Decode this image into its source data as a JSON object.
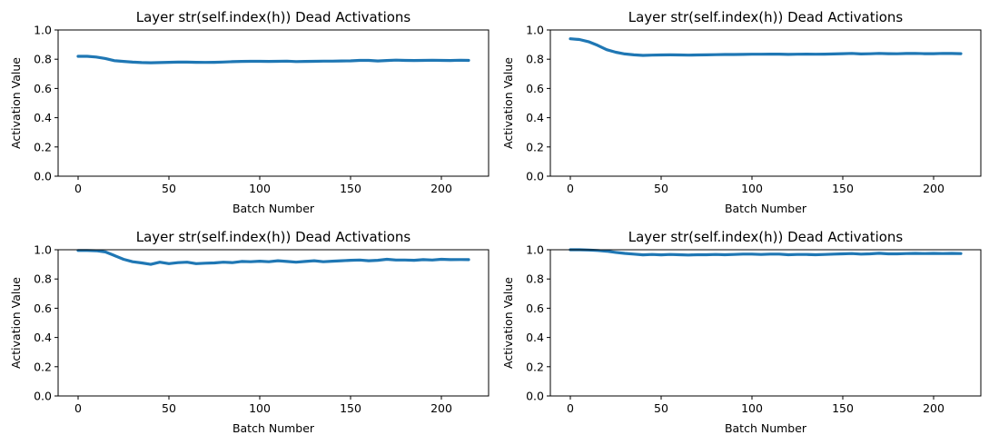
{
  "figure": {
    "background": "#ffffff",
    "line_color": "#1f77b4"
  },
  "chart_data": [
    {
      "type": "line",
      "title": "Layer str(self.index(h)) Dead Activations",
      "xlabel": "Batch Number",
      "ylabel": "Activation Value",
      "xlim": [
        -11,
        226
      ],
      "ylim": [
        0,
        1
      ],
      "xticks": [
        0,
        50,
        100,
        150,
        200
      ],
      "yticks": [
        0.0,
        0.2,
        0.4,
        0.6,
        0.8,
        1.0
      ],
      "xtick_labels": [
        "0",
        "50",
        "100",
        "150",
        "200"
      ],
      "ytick_labels": [
        "0.0",
        "0.2",
        "0.4",
        "0.6",
        "0.8",
        "1.0"
      ],
      "series": [
        {
          "x": [
            0,
            5,
            10,
            15,
            20,
            25,
            30,
            35,
            40,
            45,
            50,
            55,
            60,
            65,
            70,
            75,
            80,
            85,
            90,
            95,
            100,
            105,
            110,
            115,
            120,
            125,
            130,
            135,
            140,
            145,
            150,
            155,
            160,
            165,
            170,
            175,
            180,
            185,
            190,
            195,
            200,
            205,
            210,
            215
          ],
          "values": [
            0.82,
            0.82,
            0.815,
            0.805,
            0.79,
            0.785,
            0.78,
            0.777,
            0.776,
            0.777,
            0.779,
            0.78,
            0.78,
            0.779,
            0.778,
            0.779,
            0.781,
            0.783,
            0.785,
            0.786,
            0.786,
            0.785,
            0.786,
            0.787,
            0.784,
            0.785,
            0.786,
            0.787,
            0.787,
            0.788,
            0.789,
            0.792,
            0.792,
            0.788,
            0.791,
            0.794,
            0.792,
            0.791,
            0.792,
            0.793,
            0.792,
            0.791,
            0.793,
            0.792
          ]
        }
      ]
    },
    {
      "type": "line",
      "title": "Layer str(self.index(h)) Dead Activations",
      "xlabel": "Batch Number",
      "ylabel": "Activation Value",
      "xlim": [
        -11,
        226
      ],
      "ylim": [
        0,
        1
      ],
      "xticks": [
        0,
        50,
        100,
        150,
        200
      ],
      "yticks": [
        0.0,
        0.2,
        0.4,
        0.6,
        0.8,
        1.0
      ],
      "xtick_labels": [
        "0",
        "50",
        "100",
        "150",
        "200"
      ],
      "ytick_labels": [
        "0.0",
        "0.2",
        "0.4",
        "0.6",
        "0.8",
        "1.0"
      ],
      "series": [
        {
          "x": [
            0,
            5,
            10,
            15,
            20,
            25,
            30,
            35,
            40,
            45,
            50,
            55,
            60,
            65,
            70,
            75,
            80,
            85,
            90,
            95,
            100,
            105,
            110,
            115,
            120,
            125,
            130,
            135,
            140,
            145,
            150,
            155,
            160,
            165,
            170,
            175,
            180,
            185,
            190,
            195,
            200,
            205,
            210,
            215
          ],
          "values": [
            0.94,
            0.935,
            0.92,
            0.895,
            0.865,
            0.848,
            0.836,
            0.83,
            0.826,
            0.828,
            0.829,
            0.83,
            0.829,
            0.828,
            0.829,
            0.83,
            0.831,
            0.832,
            0.832,
            0.833,
            0.834,
            0.834,
            0.835,
            0.835,
            0.833,
            0.834,
            0.835,
            0.834,
            0.835,
            0.836,
            0.838,
            0.84,
            0.836,
            0.837,
            0.84,
            0.838,
            0.837,
            0.839,
            0.84,
            0.838,
            0.838,
            0.84,
            0.839,
            0.838
          ]
        }
      ]
    },
    {
      "type": "line",
      "title": "Layer str(self.index(h)) Dead Activations",
      "xlabel": "Batch Number",
      "ylabel": "Activation Value",
      "xlim": [
        -11,
        226
      ],
      "ylim": [
        0,
        1
      ],
      "xticks": [
        0,
        50,
        100,
        150,
        200
      ],
      "yticks": [
        0.0,
        0.2,
        0.4,
        0.6,
        0.8,
        1.0
      ],
      "xtick_labels": [
        "0",
        "50",
        "100",
        "150",
        "200"
      ],
      "ytick_labels": [
        "0.0",
        "0.2",
        "0.4",
        "0.6",
        "0.8",
        "1.0"
      ],
      "series": [
        {
          "x": [
            0,
            5,
            10,
            15,
            20,
            25,
            30,
            35,
            40,
            45,
            50,
            55,
            60,
            65,
            70,
            75,
            80,
            85,
            90,
            95,
            100,
            105,
            110,
            115,
            120,
            125,
            130,
            135,
            140,
            145,
            150,
            155,
            160,
            165,
            170,
            175,
            180,
            185,
            190,
            195,
            200,
            205,
            210,
            215
          ],
          "values": [
            0.995,
            0.995,
            0.993,
            0.985,
            0.96,
            0.935,
            0.918,
            0.91,
            0.9,
            0.915,
            0.905,
            0.912,
            0.915,
            0.905,
            0.908,
            0.91,
            0.915,
            0.912,
            0.92,
            0.918,
            0.922,
            0.918,
            0.925,
            0.92,
            0.915,
            0.92,
            0.925,
            0.918,
            0.922,
            0.925,
            0.928,
            0.93,
            0.925,
            0.928,
            0.935,
            0.93,
            0.93,
            0.928,
            0.932,
            0.93,
            0.935,
            0.932,
            0.933,
            0.932
          ]
        }
      ]
    },
    {
      "type": "line",
      "title": "Layer str(self.index(h)) Dead Activations",
      "xlabel": "Batch Number",
      "ylabel": "Activation Value",
      "xlim": [
        -11,
        226
      ],
      "ylim": [
        0,
        1
      ],
      "xticks": [
        0,
        50,
        100,
        150,
        200
      ],
      "yticks": [
        0.0,
        0.2,
        0.4,
        0.6,
        0.8,
        1.0
      ],
      "xtick_labels": [
        "0",
        "50",
        "100",
        "150",
        "200"
      ],
      "ytick_labels": [
        "0.0",
        "0.2",
        "0.4",
        "0.6",
        "0.8",
        "1.0"
      ],
      "series": [
        {
          "x": [
            0,
            5,
            10,
            15,
            20,
            25,
            30,
            35,
            40,
            45,
            50,
            55,
            60,
            65,
            70,
            75,
            80,
            85,
            90,
            95,
            100,
            105,
            110,
            115,
            120,
            125,
            130,
            135,
            140,
            145,
            150,
            155,
            160,
            165,
            170,
            175,
            180,
            185,
            190,
            195,
            200,
            205,
            210,
            215
          ],
          "values": [
            1.0,
            1.0,
            0.998,
            0.995,
            0.99,
            0.982,
            0.975,
            0.97,
            0.965,
            0.968,
            0.965,
            0.968,
            0.966,
            0.964,
            0.966,
            0.966,
            0.968,
            0.966,
            0.968,
            0.97,
            0.97,
            0.968,
            0.97,
            0.97,
            0.966,
            0.968,
            0.968,
            0.966,
            0.968,
            0.97,
            0.972,
            0.974,
            0.97,
            0.972,
            0.976,
            0.972,
            0.972,
            0.974,
            0.975,
            0.974,
            0.975,
            0.974,
            0.975,
            0.974
          ]
        }
      ]
    }
  ]
}
